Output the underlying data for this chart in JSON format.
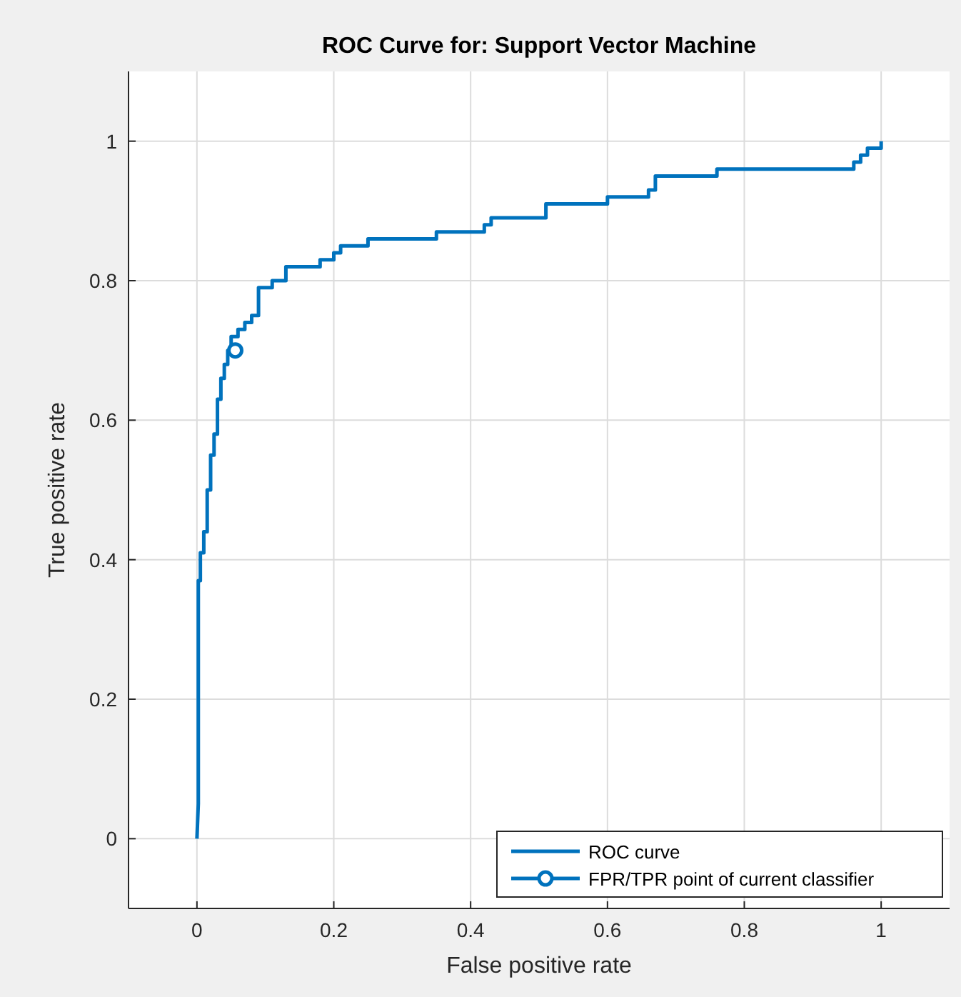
{
  "chart_data": {
    "type": "line",
    "title": "ROC Curve for: Support Vector Machine",
    "xlabel": "False positive rate",
    "ylabel": "True positive rate",
    "xlim": [
      -0.1,
      1.1
    ],
    "ylim": [
      -0.1,
      1.1
    ],
    "xticks": [
      0,
      0.2,
      0.4,
      0.6,
      0.8,
      1
    ],
    "yticks": [
      0,
      0.2,
      0.4,
      0.6,
      0.8,
      1
    ],
    "grid": true,
    "legend": "bottom right",
    "series": [
      {
        "name": "ROC curve",
        "color": "#0072bd",
        "marker": "none",
        "x": [
          0,
          0.002,
          0.002,
          0.005,
          0.005,
          0.01,
          0.01,
          0.015,
          0.015,
          0.02,
          0.02,
          0.025,
          0.025,
          0.03,
          0.03,
          0.035,
          0.035,
          0.04,
          0.04,
          0.045,
          0.045,
          0.05,
          0.05,
          0.06,
          0.06,
          0.07,
          0.07,
          0.08,
          0.08,
          0.09,
          0.09,
          0.11,
          0.11,
          0.13,
          0.13,
          0.18,
          0.18,
          0.2,
          0.2,
          0.21,
          0.21,
          0.25,
          0.25,
          0.35,
          0.35,
          0.42,
          0.42,
          0.43,
          0.43,
          0.51,
          0.51,
          0.6,
          0.6,
          0.66,
          0.66,
          0.67,
          0.67,
          0.76,
          0.76,
          0.96,
          0.96,
          0.97,
          0.97,
          0.98,
          0.98,
          1,
          1
        ],
        "values": [
          0,
          0.05,
          0.37,
          0.37,
          0.41,
          0.41,
          0.44,
          0.44,
          0.5,
          0.5,
          0.55,
          0.55,
          0.58,
          0.58,
          0.63,
          0.63,
          0.66,
          0.66,
          0.68,
          0.68,
          0.7,
          0.7,
          0.72,
          0.72,
          0.73,
          0.73,
          0.74,
          0.74,
          0.75,
          0.75,
          0.79,
          0.79,
          0.8,
          0.8,
          0.82,
          0.82,
          0.83,
          0.83,
          0.84,
          0.84,
          0.85,
          0.85,
          0.86,
          0.86,
          0.87,
          0.87,
          0.88,
          0.88,
          0.89,
          0.89,
          0.91,
          0.91,
          0.92,
          0.92,
          0.93,
          0.93,
          0.95,
          0.95,
          0.96,
          0.96,
          0.97,
          0.97,
          0.98,
          0.98,
          0.99,
          0.99,
          1
        ]
      },
      {
        "name": "FPR/TPR point of current classifier",
        "color": "#0072bd",
        "marker": "circle",
        "x": [
          0.056
        ],
        "values": [
          0.7
        ]
      }
    ]
  }
}
